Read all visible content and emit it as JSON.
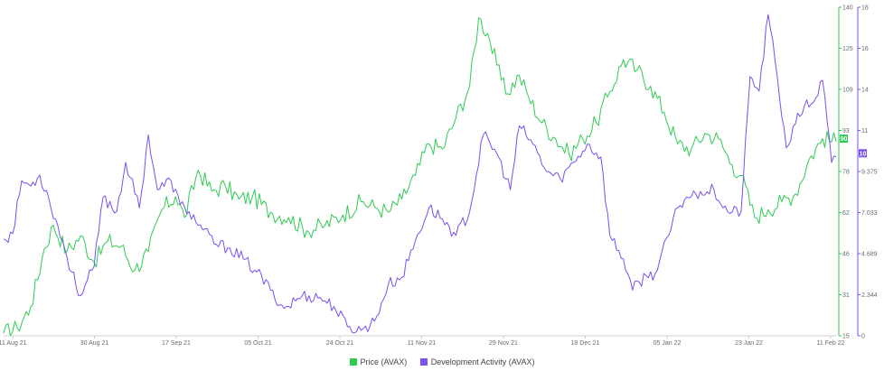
{
  "chart_data": {
    "type": "line",
    "x_labels": [
      "11 Aug 21",
      "30 Aug 21",
      "17 Sep 21",
      "05 Oct 21",
      "24 Oct 21",
      "11 Nov 21",
      "29 Nov 21",
      "18 Dec 21",
      "05 Jan 22",
      "23 Jan 22",
      "11 Feb 22"
    ],
    "x_range": [
      "2021-08-11",
      "2022-02-11"
    ],
    "price_axis": {
      "ticks": [
        "140",
        "125",
        "109",
        "93",
        "78",
        "62",
        "46",
        "31",
        "15"
      ],
      "range": [
        15,
        140
      ]
    },
    "dev_axis": {
      "ticks": [
        "18",
        "16",
        "14",
        "11",
        "9.375",
        "7.033",
        "4.689",
        "2.344",
        "0"
      ],
      "range": [
        0,
        18
      ]
    },
    "series": [
      {
        "name": "Price (AVAX)",
        "color": "#2ecc52",
        "axis": "price",
        "current_label": "90",
        "points": [
          [
            "2021-08-11",
            16
          ],
          [
            "2021-08-14",
            18
          ],
          [
            "2021-08-17",
            26
          ],
          [
            "2021-08-20",
            48
          ],
          [
            "2021-08-22",
            57
          ],
          [
            "2021-08-25",
            47
          ],
          [
            "2021-08-28",
            53
          ],
          [
            "2021-08-31",
            43
          ],
          [
            "2021-09-03",
            51
          ],
          [
            "2021-09-06",
            49
          ],
          [
            "2021-09-09",
            40
          ],
          [
            "2021-09-12",
            47
          ],
          [
            "2021-09-15",
            63
          ],
          [
            "2021-09-18",
            68
          ],
          [
            "2021-09-20",
            60
          ],
          [
            "2021-09-23",
            78
          ],
          [
            "2021-09-26",
            70
          ],
          [
            "2021-09-29",
            72
          ],
          [
            "2021-10-02",
            67
          ],
          [
            "2021-10-05",
            68
          ],
          [
            "2021-10-09",
            62
          ],
          [
            "2021-10-13",
            60
          ],
          [
            "2021-10-17",
            55
          ],
          [
            "2021-10-21",
            57
          ],
          [
            "2021-10-25",
            61
          ],
          [
            "2021-10-29",
            66
          ],
          [
            "2021-11-01",
            64
          ],
          [
            "2021-11-04",
            62
          ],
          [
            "2021-11-07",
            67
          ],
          [
            "2021-11-10",
            76
          ],
          [
            "2021-11-13",
            88
          ],
          [
            "2021-11-16",
            86
          ],
          [
            "2021-11-19",
            98
          ],
          [
            "2021-11-22",
            110
          ],
          [
            "2021-11-24",
            136
          ],
          [
            "2021-11-26",
            130
          ],
          [
            "2021-11-28",
            118
          ],
          [
            "2021-11-30",
            107
          ],
          [
            "2021-12-03",
            114
          ],
          [
            "2021-12-05",
            106
          ],
          [
            "2021-12-08",
            96
          ],
          [
            "2021-12-11",
            90
          ],
          [
            "2021-12-14",
            84
          ],
          [
            "2021-12-17",
            90
          ],
          [
            "2021-12-20",
            96
          ],
          [
            "2021-12-23",
            108
          ],
          [
            "2021-12-26",
            120
          ],
          [
            "2021-12-29",
            116
          ],
          [
            "2022-01-01",
            110
          ],
          [
            "2022-01-04",
            100
          ],
          [
            "2022-01-07",
            88
          ],
          [
            "2022-01-10",
            86
          ],
          [
            "2022-01-13",
            92
          ],
          [
            "2022-01-16",
            90
          ],
          [
            "2022-01-19",
            80
          ],
          [
            "2022-01-21",
            76
          ],
          [
            "2022-01-24",
            60
          ],
          [
            "2022-01-27",
            63
          ],
          [
            "2022-01-30",
            66
          ],
          [
            "2022-02-02",
            69
          ],
          [
            "2022-02-05",
            82
          ],
          [
            "2022-02-08",
            90
          ],
          [
            "2022-02-11",
            89
          ]
        ]
      },
      {
        "name": "Development Activity (AVAX)",
        "color": "#7b4ff0",
        "axis": "dev",
        "current_label": "10",
        "points": [
          [
            "2021-08-11",
            5.3
          ],
          [
            "2021-08-13",
            5.6
          ],
          [
            "2021-08-15",
            8.5
          ],
          [
            "2021-08-17",
            8.2
          ],
          [
            "2021-08-19",
            8.8
          ],
          [
            "2021-08-21",
            7.5
          ],
          [
            "2021-08-24",
            5.2
          ],
          [
            "2021-08-26",
            3.5
          ],
          [
            "2021-08-28",
            2.2
          ],
          [
            "2021-08-31",
            3.8
          ],
          [
            "2021-09-02",
            7.6
          ],
          [
            "2021-09-05",
            6.8
          ],
          [
            "2021-09-07",
            9.5
          ],
          [
            "2021-09-10",
            7.0
          ],
          [
            "2021-09-12",
            11.0
          ],
          [
            "2021-09-14",
            8.0
          ],
          [
            "2021-09-17",
            8.5
          ],
          [
            "2021-09-19",
            7.2
          ],
          [
            "2021-09-21",
            6.8
          ],
          [
            "2021-09-24",
            5.8
          ],
          [
            "2021-09-27",
            5.0
          ],
          [
            "2021-09-30",
            4.8
          ],
          [
            "2021-10-03",
            4.2
          ],
          [
            "2021-10-06",
            3.5
          ],
          [
            "2021-10-09",
            2.5
          ],
          [
            "2021-10-12",
            1.5
          ],
          [
            "2021-10-16",
            2.2
          ],
          [
            "2021-10-20",
            2.1
          ],
          [
            "2021-10-23",
            1.6
          ],
          [
            "2021-10-26",
            0.5
          ],
          [
            "2021-10-29",
            0.3
          ],
          [
            "2021-11-01",
            0.8
          ],
          [
            "2021-11-04",
            2.8
          ],
          [
            "2021-11-07",
            3.2
          ],
          [
            "2021-11-10",
            5.2
          ],
          [
            "2021-11-13",
            7.0
          ],
          [
            "2021-11-16",
            6.4
          ],
          [
            "2021-11-19",
            5.5
          ],
          [
            "2021-11-22",
            6.8
          ],
          [
            "2021-11-25",
            11.0
          ],
          [
            "2021-11-28",
            10.0
          ],
          [
            "2021-12-01",
            8.0
          ],
          [
            "2021-12-03",
            11.5
          ],
          [
            "2021-12-06",
            10.5
          ],
          [
            "2021-12-09",
            9.0
          ],
          [
            "2021-12-12",
            8.6
          ],
          [
            "2021-12-15",
            9.5
          ],
          [
            "2021-12-18",
            10.5
          ],
          [
            "2021-12-21",
            9.8
          ],
          [
            "2021-12-23",
            5.5
          ],
          [
            "2021-12-26",
            4.2
          ],
          [
            "2021-12-28",
            2.5
          ],
          [
            "2021-12-31",
            3.3
          ],
          [
            "2022-01-02",
            3.4
          ],
          [
            "2022-01-05",
            5.5
          ],
          [
            "2022-01-07",
            7.0
          ],
          [
            "2022-01-09",
            7.6
          ],
          [
            "2022-01-12",
            7.9
          ],
          [
            "2022-01-15",
            8.0
          ],
          [
            "2022-01-18",
            6.8
          ],
          [
            "2022-01-21",
            6.8
          ],
          [
            "2022-01-23",
            14.2
          ],
          [
            "2022-01-25",
            13.4
          ],
          [
            "2022-01-27",
            17.6
          ],
          [
            "2022-01-29",
            14.2
          ],
          [
            "2022-01-31",
            10.3
          ],
          [
            "2022-02-02",
            11.6
          ],
          [
            "2022-02-04",
            12.6
          ],
          [
            "2022-02-06",
            12.8
          ],
          [
            "2022-02-08",
            14.0
          ],
          [
            "2022-02-10",
            9.5
          ],
          [
            "2022-02-11",
            9.8
          ]
        ]
      }
    ],
    "grid": false,
    "legend_position": "bottom-center"
  }
}
